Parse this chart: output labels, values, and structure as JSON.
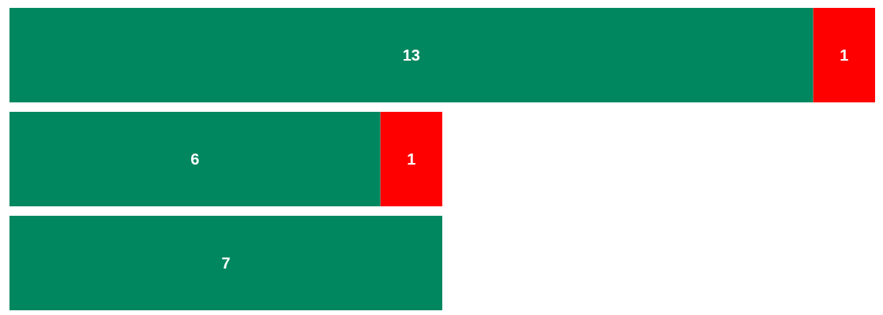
{
  "chart_data": {
    "type": "bar",
    "orientation": "horizontal",
    "stacked": true,
    "data_labels": true,
    "tick_labels": false,
    "categories": [
      null,
      null,
      null
    ],
    "series": [
      {
        "color": "#00875f",
        "values": [
          13,
          6,
          7
        ]
      },
      {
        "color": "#ff0000",
        "values": [
          1,
          1,
          null
        ]
      }
    ]
  }
}
